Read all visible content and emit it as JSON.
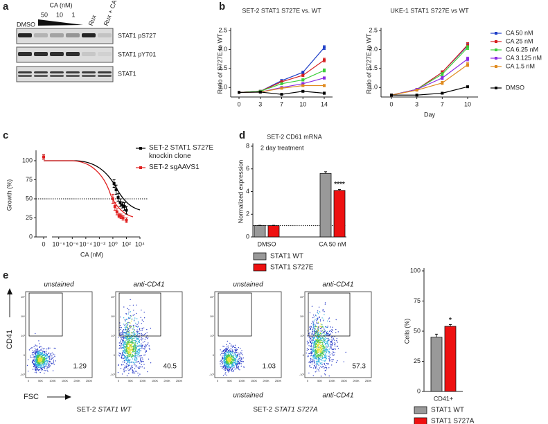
{
  "panel_labels": [
    "a",
    "b",
    "c",
    "d",
    "e"
  ],
  "blot": {
    "treatment_label": "CA (nM)",
    "lanes": [
      "DMSO",
      "50",
      "10",
      "1",
      "Rux",
      "Rux + CA"
    ],
    "bands": [
      "STAT1 pS727",
      "STAT1 pY701",
      "STAT1"
    ]
  },
  "chart_data": [
    {
      "type": "line",
      "title": "SET-2 STAT1 S727E vs. WT",
      "y_label": "Ratio of S727E to WT",
      "categories": [
        0,
        3,
        7,
        10,
        14
      ],
      "ylim": [
        0.75,
        2.5
      ],
      "yticks": [
        {
          "value": 1,
          "label": "1.0"
        },
        {
          "value": 1.5,
          "label": "1.5"
        },
        {
          "value": 2,
          "label": "2.0"
        },
        {
          "value": 2.5,
          "label": "2.5"
        }
      ],
      "series": [
        {
          "color": "#1f3fc8",
          "values": [
            0.87,
            0.9,
            1.18,
            1.4,
            2.05
          ],
          "errors": [
            0.01,
            0.02,
            0.03,
            0.03,
            0.05
          ]
        },
        {
          "color": "#d62020",
          "values": [
            0.87,
            0.9,
            1.15,
            1.32,
            1.72
          ],
          "errors": [
            0.01,
            0.02,
            0.03,
            0.03,
            0.05
          ]
        },
        {
          "color": "#3ccf3c",
          "values": [
            0.87,
            0.9,
            1.1,
            1.2,
            1.45
          ],
          "errors": [
            0.01,
            0.02,
            0.02,
            0.03,
            0.04
          ]
        },
        {
          "color": "#8a2be2",
          "values": [
            0.87,
            0.88,
            1.0,
            1.1,
            1.25
          ],
          "errors": [
            0.01,
            0.02,
            0.02,
            0.03,
            0.03
          ]
        },
        {
          "color": "#e08a1e",
          "values": [
            0.87,
            0.88,
            0.98,
            1.05,
            1.05
          ],
          "errors": [
            0.01,
            0.02,
            0.02,
            0.02,
            0.03
          ]
        },
        {
          "color": "#000000",
          "values": [
            0.87,
            0.88,
            0.82,
            0.9,
            0.85
          ],
          "errors": [
            0.01,
            0.01,
            0.02,
            0.02,
            0.03
          ]
        }
      ]
    },
    {
      "type": "line",
      "title": "UKE-1 STAT1 S727E vs WT",
      "y_label": "Ratio of S727E to WT",
      "x_label": "Day",
      "categories": [
        0,
        3,
        7,
        10
      ],
      "ylim": [
        0.75,
        2.5
      ],
      "yticks": [
        {
          "value": 1,
          "label": "1.0"
        },
        {
          "value": 1.5,
          "label": "1.5"
        },
        {
          "value": 2,
          "label": "2.0"
        },
        {
          "value": 2.5,
          "label": "2.5"
        }
      ],
      "legend": "right",
      "series": [
        {
          "name": "CA 50 nM",
          "color": "#1f3fc8",
          "values": [
            0.8,
            0.95,
            1.4,
            2.1
          ],
          "errors": [
            0.01,
            0.02,
            0.04,
            0.06
          ]
        },
        {
          "name": "CA 25 nM",
          "color": "#d62020",
          "values": [
            0.8,
            0.95,
            1.4,
            2.12
          ],
          "errors": [
            0.01,
            0.02,
            0.04,
            0.06
          ]
        },
        {
          "name": "CA 6.25 nM",
          "color": "#3ccf3c",
          "values": [
            0.8,
            0.95,
            1.35,
            2.05
          ],
          "errors": [
            0.01,
            0.02,
            0.04,
            0.05
          ]
        },
        {
          "name": "CA 3.125 nM",
          "color": "#8a2be2",
          "values": [
            0.8,
            0.95,
            1.25,
            1.75
          ],
          "errors": [
            0.01,
            0.02,
            0.04,
            0.05
          ]
        },
        {
          "name": "CA 1.5 nM",
          "color": "#e08a1e",
          "values": [
            0.8,
            0.93,
            1.12,
            1.6
          ],
          "errors": [
            0.01,
            0.02,
            0.04,
            0.05
          ]
        },
        {
          "name": "DMSO",
          "color": "#000000",
          "values": [
            0.8,
            0.8,
            0.85,
            1.02
          ],
          "errors": [
            0.01,
            0.01,
            0.01,
            0.02
          ]
        }
      ]
    },
    {
      "type": "scatter",
      "x_label": "CA (nM)",
      "y_label": "Growth (%)",
      "xscale": "log",
      "xlim": [
        1e-09,
        10000
      ],
      "xticks": [
        0,
        {
          "value": 1e-08,
          "label": "10⁻⁸"
        },
        {
          "value": 1e-06,
          "label": "10⁻⁶"
        },
        {
          "value": 0.0001,
          "label": "10⁻⁴"
        },
        {
          "value": 0.01,
          "label": "10⁻²"
        },
        {
          "value": 1,
          "label": "10⁰"
        },
        {
          "value": 100,
          "label": "10²"
        },
        {
          "value": 10000,
          "label": "10⁴"
        }
      ],
      "ylim": [
        0,
        110
      ],
      "yticks": [
        0,
        25,
        50,
        75,
        100
      ],
      "reference_line": 50,
      "series": [
        {
          "name": "SET-2 STAT1 S727E knockin clone",
          "color": "#000000",
          "x": [
            0,
            1.5,
            3,
            6,
            12,
            25,
            50,
            100
          ],
          "values": [
            105,
            70,
            62,
            52,
            45,
            42,
            40,
            35
          ],
          "errors": [
            3,
            5,
            6,
            5,
            5,
            4,
            5,
            5
          ]
        },
        {
          "name": "SET-2 sgAAVS1",
          "color": "#e02020",
          "x": [
            0,
            1,
            2,
            4,
            8,
            16,
            32,
            100
          ],
          "values": [
            105,
            50,
            40,
            33,
            28,
            27,
            25,
            22
          ],
          "errors": [
            3,
            6,
            5,
            4,
            3,
            3,
            3,
            3
          ]
        }
      ]
    },
    {
      "type": "bar",
      "title": "SET-2 CD61 mRNA",
      "subtitle": "2 day treatment",
      "y_label": "Normalized expression",
      "categories": [
        "DMSO",
        "CA 50 nM"
      ],
      "ylim": [
        0,
        8
      ],
      "yticks": [
        0,
        2,
        4,
        6,
        8
      ],
      "reference_line": 1,
      "annotation": "****",
      "series": [
        {
          "name": "STAT1 WT",
          "color": "#999999",
          "values": [
            1.0,
            5.6
          ],
          "errors": [
            0.03,
            0.15
          ]
        },
        {
          "name": "STAT1 S727E",
          "color": "#ee1111",
          "values": [
            1.0,
            4.1
          ],
          "errors": [
            0.03,
            0.08
          ]
        }
      ]
    },
    {
      "type": "bar",
      "y_label": "Cells (%)",
      "categories": [
        "CD41+"
      ],
      "ylim": [
        0,
        100
      ],
      "yticks": [
        0,
        25,
        50,
        75,
        100
      ],
      "annotation": "*",
      "series": [
        {
          "name": "STAT1 WT",
          "color": "#999999",
          "values": [
            45
          ],
          "errors": [
            2.5
          ]
        },
        {
          "name": "STAT1 S727A",
          "color": "#ee1111",
          "values": [
            54
          ],
          "errors": [
            1.5
          ]
        }
      ]
    }
  ],
  "flow": {
    "y_label": "CD41",
    "x_label": "FSC",
    "xticks": [
      "0",
      "50K",
      "100K",
      "150K",
      "200K",
      "250K"
    ],
    "yticks": [
      "-10³",
      "0",
      "10³",
      "10⁴",
      "10⁵"
    ],
    "groups": [
      {
        "prefix": "SET-2",
        "gene": "STAT1 WT",
        "plots": [
          {
            "title": "unstained",
            "percent": 1.29
          },
          {
            "title": "anti-CD41",
            "percent": 40.5
          }
        ]
      },
      {
        "prefix": "SET-2",
        "gene": "STAT1 S727A",
        "plots": [
          {
            "title": "unstained",
            "percent": 1.03
          },
          {
            "title": "anti-CD41",
            "percent": 57.3
          }
        ],
        "bottom_labels": [
          "unstained",
          "anti-CD41"
        ]
      }
    ]
  }
}
